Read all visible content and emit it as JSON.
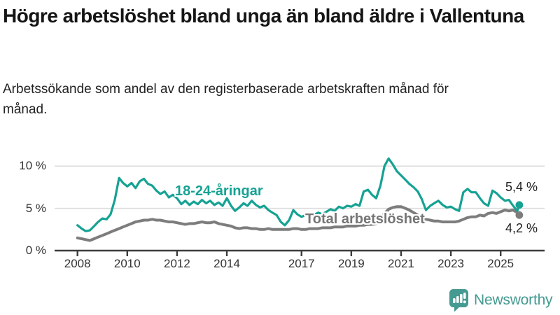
{
  "title": "Högre arbetslöshet bland unga än bland äldre i Vallentuna",
  "subtitle": "Arbetssökande som andel av den registerbaserade arbetskraften månad för månad.",
  "branding": {
    "logo_text": "Newsworthy",
    "logo_icon": "bar-chart-speech-bubble"
  },
  "colors": {
    "young_line": "#16a293",
    "total_line": "#7d7d7d",
    "total_label": "#757575",
    "grid": "#dcdcdc",
    "axis": "#3d3d3d",
    "text": "#222222",
    "logo": "#459a91"
  },
  "chart_data": {
    "type": "line",
    "title": "Högre arbetslöshet bland unga än bland äldre i Vallentuna",
    "subtitle": "Arbetssökande som andel av den registerbaserade arbetskraften månad för månad.",
    "x_unit": "decimal_year",
    "xlim": [
      2008,
      2025.83
    ],
    "ylim": [
      0,
      12
    ],
    "grid": "horizontal",
    "legend": "inline-labels",
    "yticks": [
      {
        "value": 0,
        "label": "0 %"
      },
      {
        "value": 5,
        "label": "5 %"
      },
      {
        "value": 10,
        "label": "10 %"
      }
    ],
    "xticks": [
      {
        "value": 2008,
        "label": "2008"
      },
      {
        "value": 2010,
        "label": "2010"
      },
      {
        "value": 2012,
        "label": "2012"
      },
      {
        "value": 2014,
        "label": "2014"
      },
      {
        "value": 2017,
        "label": "2017"
      },
      {
        "value": 2019,
        "label": "2019"
      },
      {
        "value": 2021,
        "label": "2021"
      },
      {
        "value": 2023,
        "label": "2023"
      },
      {
        "value": 2025,
        "label": "2025"
      }
    ],
    "x": [
      2008,
      2008.17,
      2008.33,
      2008.5,
      2008.67,
      2008.83,
      2009,
      2009.17,
      2009.33,
      2009.5,
      2009.67,
      2009.83,
      2010,
      2010.17,
      2010.33,
      2010.5,
      2010.67,
      2010.83,
      2011,
      2011.17,
      2011.33,
      2011.5,
      2011.67,
      2011.83,
      2012,
      2012.17,
      2012.33,
      2012.5,
      2012.67,
      2012.83,
      2013,
      2013.17,
      2013.33,
      2013.5,
      2013.67,
      2013.83,
      2014,
      2014.17,
      2014.33,
      2014.5,
      2014.67,
      2014.83,
      2015,
      2015.17,
      2015.33,
      2015.5,
      2015.67,
      2015.83,
      2016,
      2016.17,
      2016.33,
      2016.5,
      2016.67,
      2016.83,
      2017,
      2017.17,
      2017.33,
      2017.5,
      2017.67,
      2017.83,
      2018,
      2018.17,
      2018.33,
      2018.5,
      2018.67,
      2018.83,
      2019,
      2019.17,
      2019.33,
      2019.5,
      2019.67,
      2019.83,
      2020,
      2020.17,
      2020.33,
      2020.5,
      2020.67,
      2020.83,
      2021,
      2021.17,
      2021.33,
      2021.5,
      2021.67,
      2021.83,
      2022,
      2022.17,
      2022.33,
      2022.5,
      2022.67,
      2022.83,
      2023,
      2023.17,
      2023.33,
      2023.5,
      2023.67,
      2023.83,
      2024,
      2024.17,
      2024.33,
      2024.5,
      2024.67,
      2024.83,
      2025,
      2025.17,
      2025.33,
      2025.5,
      2025.67,
      2025.75
    ],
    "series": [
      {
        "name": "18-24-åringar",
        "color": "#16a293",
        "end_label": "5,4 %",
        "end_value": 5.4,
        "values": [
          3.0,
          2.6,
          2.3,
          2.4,
          2.9,
          3.4,
          3.8,
          3.7,
          4.3,
          6.0,
          8.6,
          8.0,
          7.6,
          8.0,
          7.4,
          8.2,
          8.5,
          7.9,
          7.7,
          7.1,
          6.7,
          7.0,
          6.3,
          6.6,
          6.2,
          5.5,
          5.9,
          5.4,
          5.8,
          5.5,
          6.0,
          5.6,
          5.9,
          5.4,
          5.7,
          5.3,
          6.2,
          5.3,
          4.7,
          5.1,
          5.6,
          5.3,
          5.9,
          5.4,
          5.1,
          5.3,
          4.8,
          4.5,
          4.2,
          3.4,
          3.0,
          3.6,
          4.8,
          4.3,
          4.0,
          4.2,
          4.4,
          4.2,
          4.5,
          4.3,
          4.6,
          4.9,
          4.7,
          5.2,
          5.0,
          5.3,
          5.2,
          5.5,
          5.3,
          7.0,
          7.2,
          6.6,
          6.2,
          7.7,
          10.0,
          10.9,
          10.2,
          9.4,
          8.9,
          8.4,
          7.9,
          7.5,
          7.0,
          6.1,
          4.8,
          5.3,
          5.6,
          5.9,
          5.4,
          5.1,
          5.2,
          4.9,
          4.7,
          6.9,
          7.3,
          6.9,
          6.9,
          6.2,
          5.6,
          5.3,
          7.1,
          6.8,
          6.3,
          5.9,
          6.0,
          5.3,
          4.7,
          5.4
        ]
      },
      {
        "name": "Total arbetslöshet",
        "color": "#7d7d7d",
        "end_label": "4,2 %",
        "end_value": 4.2,
        "values": [
          1.5,
          1.4,
          1.3,
          1.2,
          1.4,
          1.6,
          1.8,
          2.0,
          2.2,
          2.4,
          2.6,
          2.8,
          3.0,
          3.2,
          3.4,
          3.5,
          3.6,
          3.6,
          3.7,
          3.6,
          3.6,
          3.5,
          3.4,
          3.4,
          3.3,
          3.2,
          3.1,
          3.2,
          3.2,
          3.3,
          3.4,
          3.3,
          3.3,
          3.4,
          3.2,
          3.1,
          3.0,
          2.9,
          2.7,
          2.6,
          2.7,
          2.7,
          2.6,
          2.6,
          2.5,
          2.5,
          2.6,
          2.5,
          2.5,
          2.5,
          2.5,
          2.5,
          2.6,
          2.6,
          2.5,
          2.5,
          2.6,
          2.6,
          2.6,
          2.7,
          2.7,
          2.7,
          2.8,
          2.8,
          2.8,
          2.9,
          2.9,
          2.9,
          3.0,
          3.0,
          3.1,
          3.1,
          3.2,
          3.6,
          4.4,
          4.9,
          5.1,
          5.2,
          5.2,
          5.0,
          4.8,
          4.5,
          4.2,
          3.9,
          3.7,
          3.6,
          3.5,
          3.5,
          3.4,
          3.4,
          3.4,
          3.4,
          3.5,
          3.7,
          3.9,
          4.0,
          4.0,
          4.2,
          4.1,
          4.4,
          4.5,
          4.4,
          4.6,
          4.8,
          4.7,
          4.8,
          4.5,
          4.2
        ]
      }
    ]
  }
}
